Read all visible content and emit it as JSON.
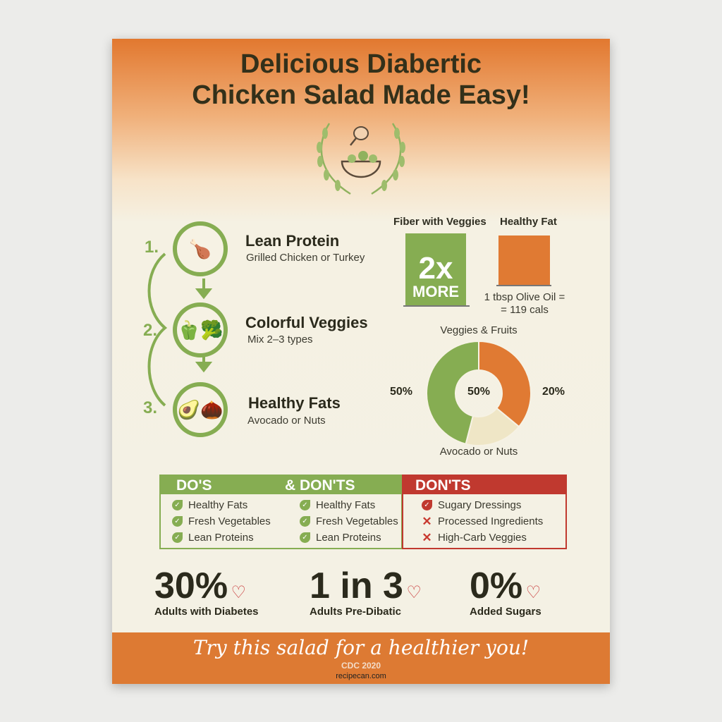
{
  "title": {
    "line1": "Delicious Diabertic",
    "line2": "Chicken Salad Made Easy!"
  },
  "emblem": {
    "icon": "laurel-chicken-bowl-icon"
  },
  "steps": [
    {
      "num": "1.",
      "title": "Lean Protein",
      "sub": "Grilled Chicken or Turkey",
      "icon": "roast-chicken-icon"
    },
    {
      "num": "2.",
      "title": "Colorful Veggies",
      "sub": "Mix 2–3 types",
      "icon": "pepper-broccoli-icon"
    },
    {
      "num": "3.",
      "title": "Healthy Fats",
      "sub": "Avocado or Nuts",
      "icon": "avocado-walnut-icon"
    }
  ],
  "fiber": {
    "label": "Fiber with Veggies",
    "big": "2x",
    "small": "MORE",
    "color": "#86ad52"
  },
  "fat": {
    "label": "Healthy Fat",
    "note1": "1 tbsp Olive Oil =",
    "note2": "= 119 cals",
    "color": "#e07a33"
  },
  "chart_data": {
    "type": "pie",
    "donut": true,
    "top_label": "Veggies & Fruits",
    "bottom_label": "Avocado or Nuts",
    "center_label": "50%",
    "left_label": "50%",
    "right_label": "20%",
    "slices": [
      {
        "value": 36,
        "color": "#e07a33"
      },
      {
        "value": 18,
        "color": "#efe6c6"
      },
      {
        "value": 46,
        "color": "#86ad52"
      }
    ]
  },
  "dos": {
    "head1": "DO'S",
    "head2": "& DON'TS",
    "col1": [
      "Healthy Fats",
      "Fresh Vegetables",
      "Lean Proteins"
    ],
    "col2": [
      "Healthy Fats",
      "Fresh Vegetables",
      "Lean Proteins"
    ]
  },
  "donts": {
    "head": "DON'TS",
    "items": [
      "Sugary Dressings",
      "Processed Ingredients",
      "High-Carb Veggies"
    ],
    "color": "#c0392f"
  },
  "stats": [
    {
      "value": "30%",
      "label": "Adults with Diabetes"
    },
    {
      "value": "1 in 3",
      "label": "Adults Pre-Dibatic"
    },
    {
      "value": "0%",
      "label": "Added Sugars"
    }
  ],
  "footer": {
    "tagline": "Try this salad for a healthier you!",
    "source": "CDC 2020",
    "watermark": "recipecan.com"
  }
}
